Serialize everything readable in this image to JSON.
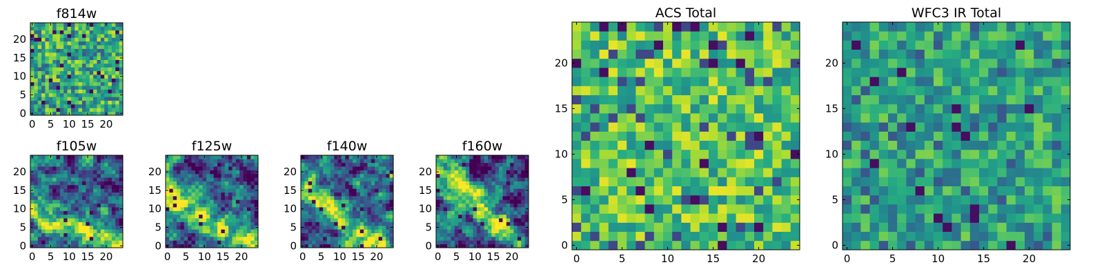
{
  "chart_data": [
    {
      "type": "heatmap",
      "title": "f814w",
      "xlim": [
        0,
        24
      ],
      "ylim": [
        0,
        24
      ],
      "xticks": [
        "0",
        "5",
        "10",
        "15",
        "20"
      ],
      "yticks": [
        "0",
        "5",
        "10",
        "15",
        "20"
      ],
      "grid": false,
      "colormap": "viridis",
      "pattern": "random noise",
      "seed": 11
    },
    {
      "type": "heatmap",
      "title": "f105w",
      "xlim": [
        0,
        24
      ],
      "ylim": [
        0,
        24
      ],
      "xticks": [
        "0",
        "5",
        "10",
        "15",
        "20"
      ],
      "yticks": [
        "0",
        "5",
        "10",
        "15",
        "20"
      ],
      "grid": false,
      "colormap": "viridis",
      "pattern": "bright band lower-left to lower-right",
      "seed": 23
    },
    {
      "type": "heatmap",
      "title": "f125w",
      "xlim": [
        0,
        24
      ],
      "ylim": [
        0,
        24
      ],
      "xticks": [
        "0",
        "5",
        "10",
        "15",
        "20"
      ],
      "yticks": [
        "0",
        "5",
        "10",
        "15",
        "20"
      ],
      "grid": false,
      "colormap": "viridis",
      "pattern": "bright diagonal band",
      "seed": 37
    },
    {
      "type": "heatmap",
      "title": "f140w",
      "xlim": [
        0,
        24
      ],
      "ylim": [
        0,
        24
      ],
      "xticks": [
        "0",
        "5",
        "10",
        "15",
        "20"
      ],
      "yticks": [
        "0",
        "5",
        "10",
        "15",
        "20"
      ],
      "grid": false,
      "colormap": "viridis",
      "pattern": "bright diagonal band",
      "seed": 41
    },
    {
      "type": "heatmap",
      "title": "f160w",
      "xlim": [
        0,
        24
      ],
      "ylim": [
        0,
        24
      ],
      "xticks": [
        "0",
        "5",
        "10",
        "15",
        "20"
      ],
      "yticks": [
        "0",
        "5",
        "10",
        "15",
        "20"
      ],
      "grid": false,
      "colormap": "viridis",
      "pattern": "bright diagonal band upper-left",
      "seed": 53
    },
    {
      "type": "heatmap",
      "title": "ACS Total",
      "xlim": [
        0,
        24
      ],
      "ylim": [
        0,
        24
      ],
      "xticks": [
        "0",
        "5",
        "10",
        "15",
        "20"
      ],
      "yticks": [
        "0",
        "5",
        "10",
        "15",
        "20"
      ],
      "grid": false,
      "colormap": "viridis",
      "pattern": "random noise, mostly green-yellow",
      "seed": 67
    },
    {
      "type": "heatmap",
      "title": "WFC3 IR Total",
      "xlim": [
        0,
        24
      ],
      "ylim": [
        0,
        24
      ],
      "xticks": [
        "0",
        "5",
        "10",
        "15",
        "20"
      ],
      "yticks": [
        "0",
        "5",
        "10",
        "15",
        "20"
      ],
      "grid": false,
      "colormap": "viridis",
      "pattern": "random noise, mostly green",
      "seed": 79
    }
  ]
}
